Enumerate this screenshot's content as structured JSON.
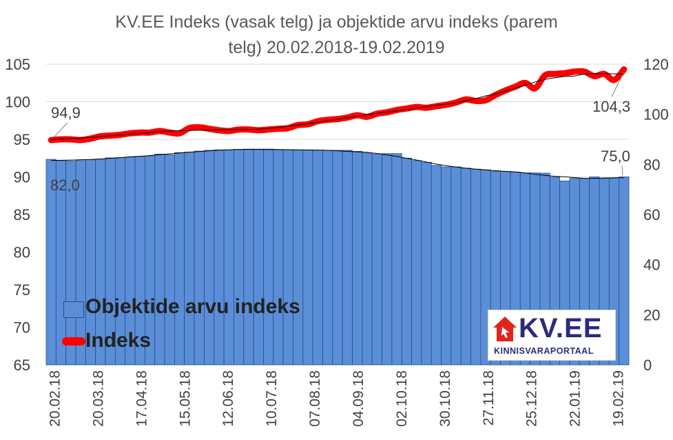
{
  "chart_data": {
    "type": "bar+line",
    "title": "KV.EE Indeks (vasak telg) ja objektide arvu indeks (parem telg) 20.02.2018-19.02.2019",
    "title_lines": [
      "KV.EE Indeks (vasak telg) ja objektide arvu indeks (parem",
      "telg) 20.02.2018-19.02.2019"
    ],
    "x_tick_labels": [
      "20.02.18",
      "20.03.18",
      "17.04.18",
      "15.05.18",
      "12.06.18",
      "10.07.18",
      "07.08.18",
      "04.09.18",
      "02.10.18",
      "30.10.18",
      "27.11.18",
      "25.12.18",
      "22.01.19",
      "19.02.19"
    ],
    "left_axis": {
      "ylim": [
        65,
        105
      ],
      "ticks": [
        "65",
        "70",
        "75",
        "80",
        "85",
        "90",
        "95",
        "100",
        "105"
      ]
    },
    "right_axis": {
      "ylim": [
        0,
        120
      ],
      "ticks": [
        "0",
        "20",
        "40",
        "60",
        "80",
        "100",
        "120"
      ]
    },
    "series": [
      {
        "name": "Objektide arvu indeks",
        "type": "bar",
        "axis": "right",
        "color": "#5b8ed6",
        "values": [
          82.0,
          81.5,
          81.3,
          81.5,
          81.9,
          82.1,
          82.6,
          82.7,
          82.9,
          83.2,
          83.4,
          84.1,
          83.8,
          84.7,
          84.9,
          85.3,
          85.6,
          85.8,
          85.8,
          86.0,
          86.1,
          86.1,
          86.1,
          85.8,
          85.8,
          85.8,
          85.8,
          85.7,
          85.6,
          85.6,
          85.6,
          85.2,
          84.5,
          84.1,
          84.3,
          84.3,
          82.5,
          81.5,
          80.8,
          79.6,
          79.0,
          79.0,
          78.5,
          78.1,
          77.8,
          77.2,
          77.2,
          76.9,
          76.6,
          76.6,
          76.5,
          74.9,
          73.4,
          74.4,
          74.4,
          75.0,
          74.4,
          74.4,
          75.0
        ],
        "labels": {
          "first": "82,0",
          "last": "75,0"
        }
      },
      {
        "name": "Indeks",
        "type": "line",
        "axis": "left",
        "color": "#ff0000",
        "values": [
          94.9,
          95.0,
          95.0,
          94.9,
          95.1,
          95.4,
          95.5,
          95.6,
          95.8,
          95.9,
          95.9,
          96.1,
          95.9,
          95.8,
          96.5,
          96.6,
          96.4,
          96.2,
          96.1,
          96.3,
          96.3,
          96.2,
          96.3,
          96.4,
          96.5,
          96.9,
          97.0,
          97.4,
          97.6,
          97.7,
          97.9,
          98.2,
          98.0,
          98.4,
          98.6,
          98.9,
          99.1,
          99.3,
          99.2,
          99.4,
          99.6,
          99.9,
          100.3,
          100.1,
          100.2,
          100.9,
          101.5,
          102.0,
          102.5,
          101.8,
          103.5,
          103.7,
          103.8,
          104.0,
          104.0,
          103.4,
          103.7,
          102.9,
          104.3
        ],
        "labels": {
          "first": "94,9",
          "last": "104,3"
        }
      }
    ],
    "legend_placement": "bottom-left",
    "grid": true
  },
  "legend": {
    "bars_label": "Objektide arvu indeks",
    "line_label": "Indeks"
  },
  "logo": {
    "name": "KV.EE",
    "tagline": "KINNISVARAPORTAAL",
    "colors": {
      "red": "#e2231a",
      "navy": "#2b2b7a"
    }
  }
}
